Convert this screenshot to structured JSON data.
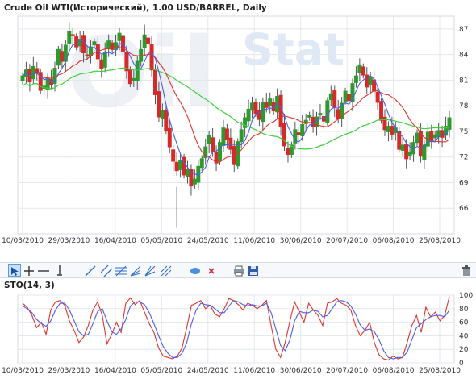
{
  "header": {
    "title": "Crude Oil WTI(Исторический), 1.00 USD/BARREL, Daily"
  },
  "watermark": {
    "left": "Oil",
    "right": "Stat"
  },
  "colors": {
    "up_candle": "#2e9a2e",
    "down_candle": "#d42a2a",
    "ma_fast": "#4a5ee8",
    "ma_mid": "#e0342c",
    "ma_slow": "#3ccf3c",
    "grid": "#e3e7ec",
    "axis_text": "#333333"
  },
  "chart_data": [
    {
      "type": "candlestick",
      "y_ticks": [
        "87",
        "84",
        "81",
        "78",
        "75",
        "72",
        "69",
        "66"
      ],
      "ylim": [
        63,
        88.5
      ],
      "x_tick_labels": [
        "10/03/2010",
        "29/03/2010",
        "16/04/2010",
        "05/05/2010",
        "24/05/2010",
        "11/06/2010",
        "30/06/2010",
        "20/07/2010",
        "06/08/2010",
        "25/08/2010"
      ],
      "series_indicators": [
        "fast MA (blue)",
        "mid MA (red)",
        "slow MA (green)"
      ],
      "close": [
        81.5,
        82.2,
        80.8,
        82.6,
        81.9,
        79.8,
        80.3,
        81.2,
        80.5,
        82.4,
        84.6,
        83.2,
        85.1,
        86.7,
        86.2,
        84.9,
        85.8,
        84.2,
        83.9,
        84.9,
        85.5,
        83.5,
        82.4,
        84.3,
        85.6,
        84.6,
        85.4,
        86.5,
        84.4,
        82.1,
        80.6,
        81.2,
        83.2,
        84.6,
        86.3,
        85.3,
        82.2,
        79.3,
        76.7,
        77.5,
        75.1,
        73.2,
        71.5,
        70.4,
        71.6,
        69.9,
        70.6,
        68.6,
        69.4,
        70.9,
        71.8,
        73.2,
        74.5,
        72.6,
        71.3,
        73.7,
        75.4,
        74.1,
        72.9,
        71.2,
        73.8,
        75.2,
        76.6,
        77.6,
        78.3,
        77.1,
        76.4,
        78.4,
        77.8,
        78.8,
        77.4,
        79.1,
        75.6,
        73.3,
        72.3,
        73.4,
        75.2,
        74.6,
        75.8,
        76.3,
        76.9,
        75.6,
        76.7,
        77.1,
        76.2,
        78.6,
        79.4,
        77.8,
        76.5,
        78.3,
        79.7,
        78.6,
        80.6,
        81.5,
        82.8,
        81.6,
        80.2,
        81.4,
        79.7,
        78.4,
        76.3,
        75.2,
        75.6,
        74.6,
        75.4,
        72.9,
        73.4,
        71.8,
        72.6,
        73.7,
        74.8,
        72.1,
        73.4,
        74.9,
        73.9,
        74.6,
        75.1,
        74.3,
        75.6,
        76.6
      ],
      "high_extremes": {
        "max": 87.5,
        "min": 63.5
      }
    },
    {
      "type": "line",
      "title": "STO(14, 3)",
      "y_ticks": [
        "100",
        "80",
        "60",
        "40",
        "20",
        "0"
      ],
      "ylim": [
        0,
        100
      ],
      "x_tick_labels": [
        "10/03/2010",
        "29/03/2010",
        "16/04/2010",
        "05/05/2010",
        "24/05/2010",
        "11/06/2010",
        "30/06/2010",
        "20/07/2010",
        "06/08/2010",
        "25/08/2010"
      ],
      "series": [
        {
          "color": "#e0342c",
          "values": [
            88,
            82,
            70,
            52,
            60,
            42,
            78,
            90,
            92,
            85,
            62,
            48,
            30,
            38,
            55,
            78,
            90,
            70,
            28,
            42,
            60,
            45,
            88,
            96,
            86,
            92,
            75,
            58,
            45,
            22,
            10,
            8,
            6,
            10,
            22,
            52,
            85,
            88,
            92,
            80,
            85,
            72,
            68,
            80,
            95,
            92,
            86,
            78,
            88,
            85,
            80,
            85,
            92,
            55,
            20,
            8,
            30,
            62,
            90,
            75,
            60,
            88,
            78,
            70,
            55,
            88,
            90,
            95,
            88,
            85,
            78,
            55,
            40,
            48,
            60,
            30,
            12,
            6,
            4,
            10,
            6,
            8,
            30,
            55,
            70,
            45,
            82,
            68,
            75,
            62,
            70,
            98
          ]
        },
        {
          "color": "#4a5ee8",
          "values": [
            84,
            80,
            74,
            64,
            58,
            54,
            62,
            78,
            88,
            88,
            78,
            62,
            46,
            40,
            42,
            58,
            76,
            80,
            62,
            46,
            42,
            50,
            64,
            84,
            90,
            90,
            86,
            74,
            58,
            40,
            24,
            14,
            8,
            8,
            14,
            30,
            58,
            78,
            88,
            86,
            85,
            80,
            74,
            74,
            84,
            92,
            90,
            86,
            84,
            86,
            84,
            84,
            88,
            74,
            50,
            26,
            18,
            34,
            62,
            76,
            74,
            74,
            78,
            76,
            68,
            70,
            80,
            90,
            92,
            90,
            84,
            72,
            56,
            48,
            50,
            46,
            34,
            18,
            8,
            6,
            8,
            8,
            16,
            34,
            52,
            58,
            64,
            68,
            70,
            70,
            68,
            78
          ]
        }
      ]
    }
  ]
}
